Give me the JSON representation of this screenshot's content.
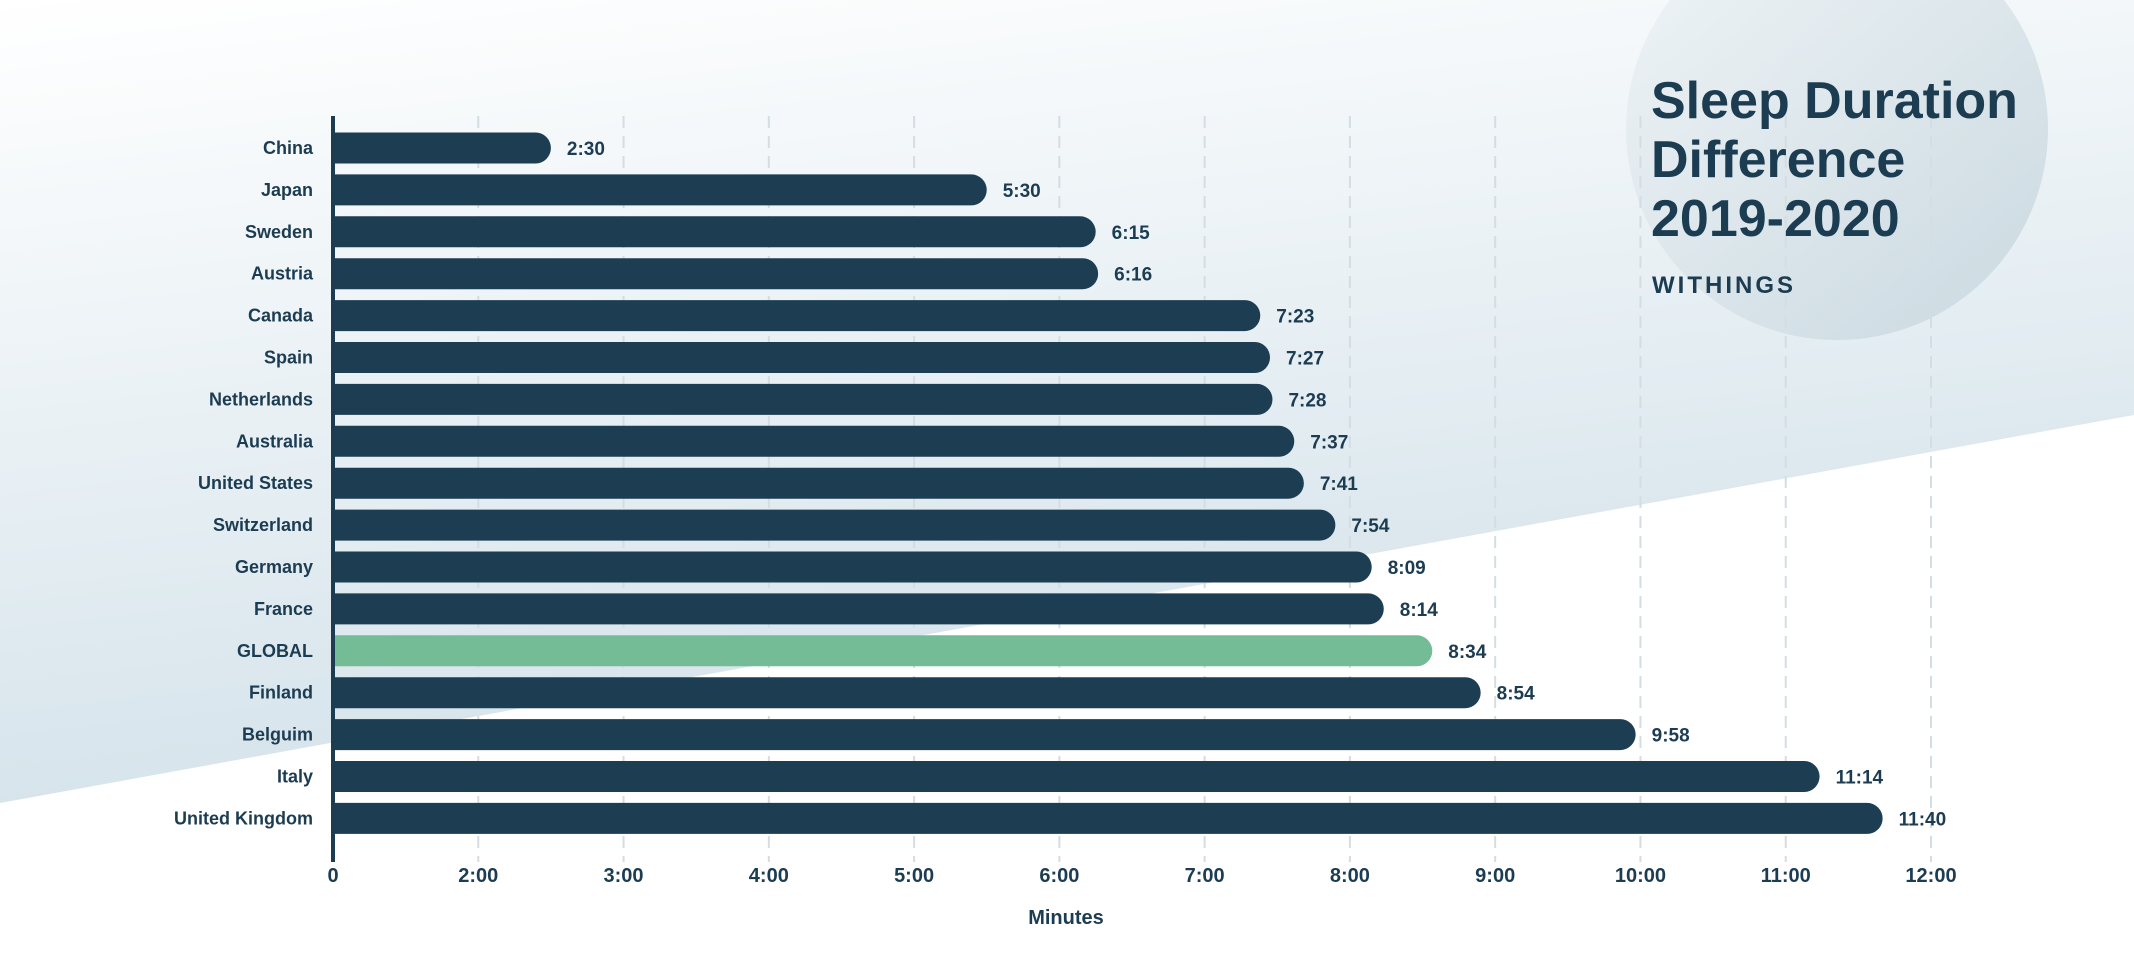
{
  "chart_data": {
    "type": "bar",
    "orientation": "horizontal",
    "title": "Sleep Duration Difference 2019-2020",
    "subtitle": "WITHINGS",
    "xlabel": "Minutes",
    "ylabel": "",
    "xlim": [
      1,
      12
    ],
    "x_ticks": [
      {
        "value": 1,
        "label": "0"
      },
      {
        "value": 2,
        "label": "2:00"
      },
      {
        "value": 3,
        "label": "3:00"
      },
      {
        "value": 4,
        "label": "4:00"
      },
      {
        "value": 5,
        "label": "5:00"
      },
      {
        "value": 6,
        "label": "6:00"
      },
      {
        "value": 7,
        "label": "7:00"
      },
      {
        "value": 8,
        "label": "8:00"
      },
      {
        "value": 9,
        "label": "9:00"
      },
      {
        "value": 10,
        "label": "10:00"
      },
      {
        "value": 11,
        "label": "11:00"
      },
      {
        "value": 12,
        "label": "12:00"
      }
    ],
    "grid": "vertical dashed",
    "categories": [
      "China",
      "Japan",
      "Sweden",
      "Austria",
      "Canada",
      "Spain",
      "Netherlands",
      "Australia",
      "United States",
      "Switzerland",
      "Germany",
      "France",
      "GLOBAL",
      "Finland",
      "Belguim",
      "Italy",
      "United Kingdom"
    ],
    "labels": [
      "2:30",
      "5:30",
      "6:15",
      "6:16",
      "7:23",
      "7:27",
      "7:28",
      "7:37",
      "7:41",
      "7:54",
      "8:09",
      "8:14",
      "8:34",
      "8:54",
      "9:58",
      "11:14",
      "11:40"
    ],
    "values": [
      2.5,
      5.5,
      6.25,
      6.267,
      7.383,
      7.45,
      7.467,
      7.617,
      7.683,
      7.9,
      8.15,
      8.233,
      8.567,
      8.9,
      9.967,
      11.233,
      11.667
    ],
    "highlight": "GLOBAL",
    "colors": {
      "bar": "#1d3d53",
      "highlight": "#74bc96",
      "text": "#1c3c52",
      "grid": "#d4dde2"
    }
  }
}
